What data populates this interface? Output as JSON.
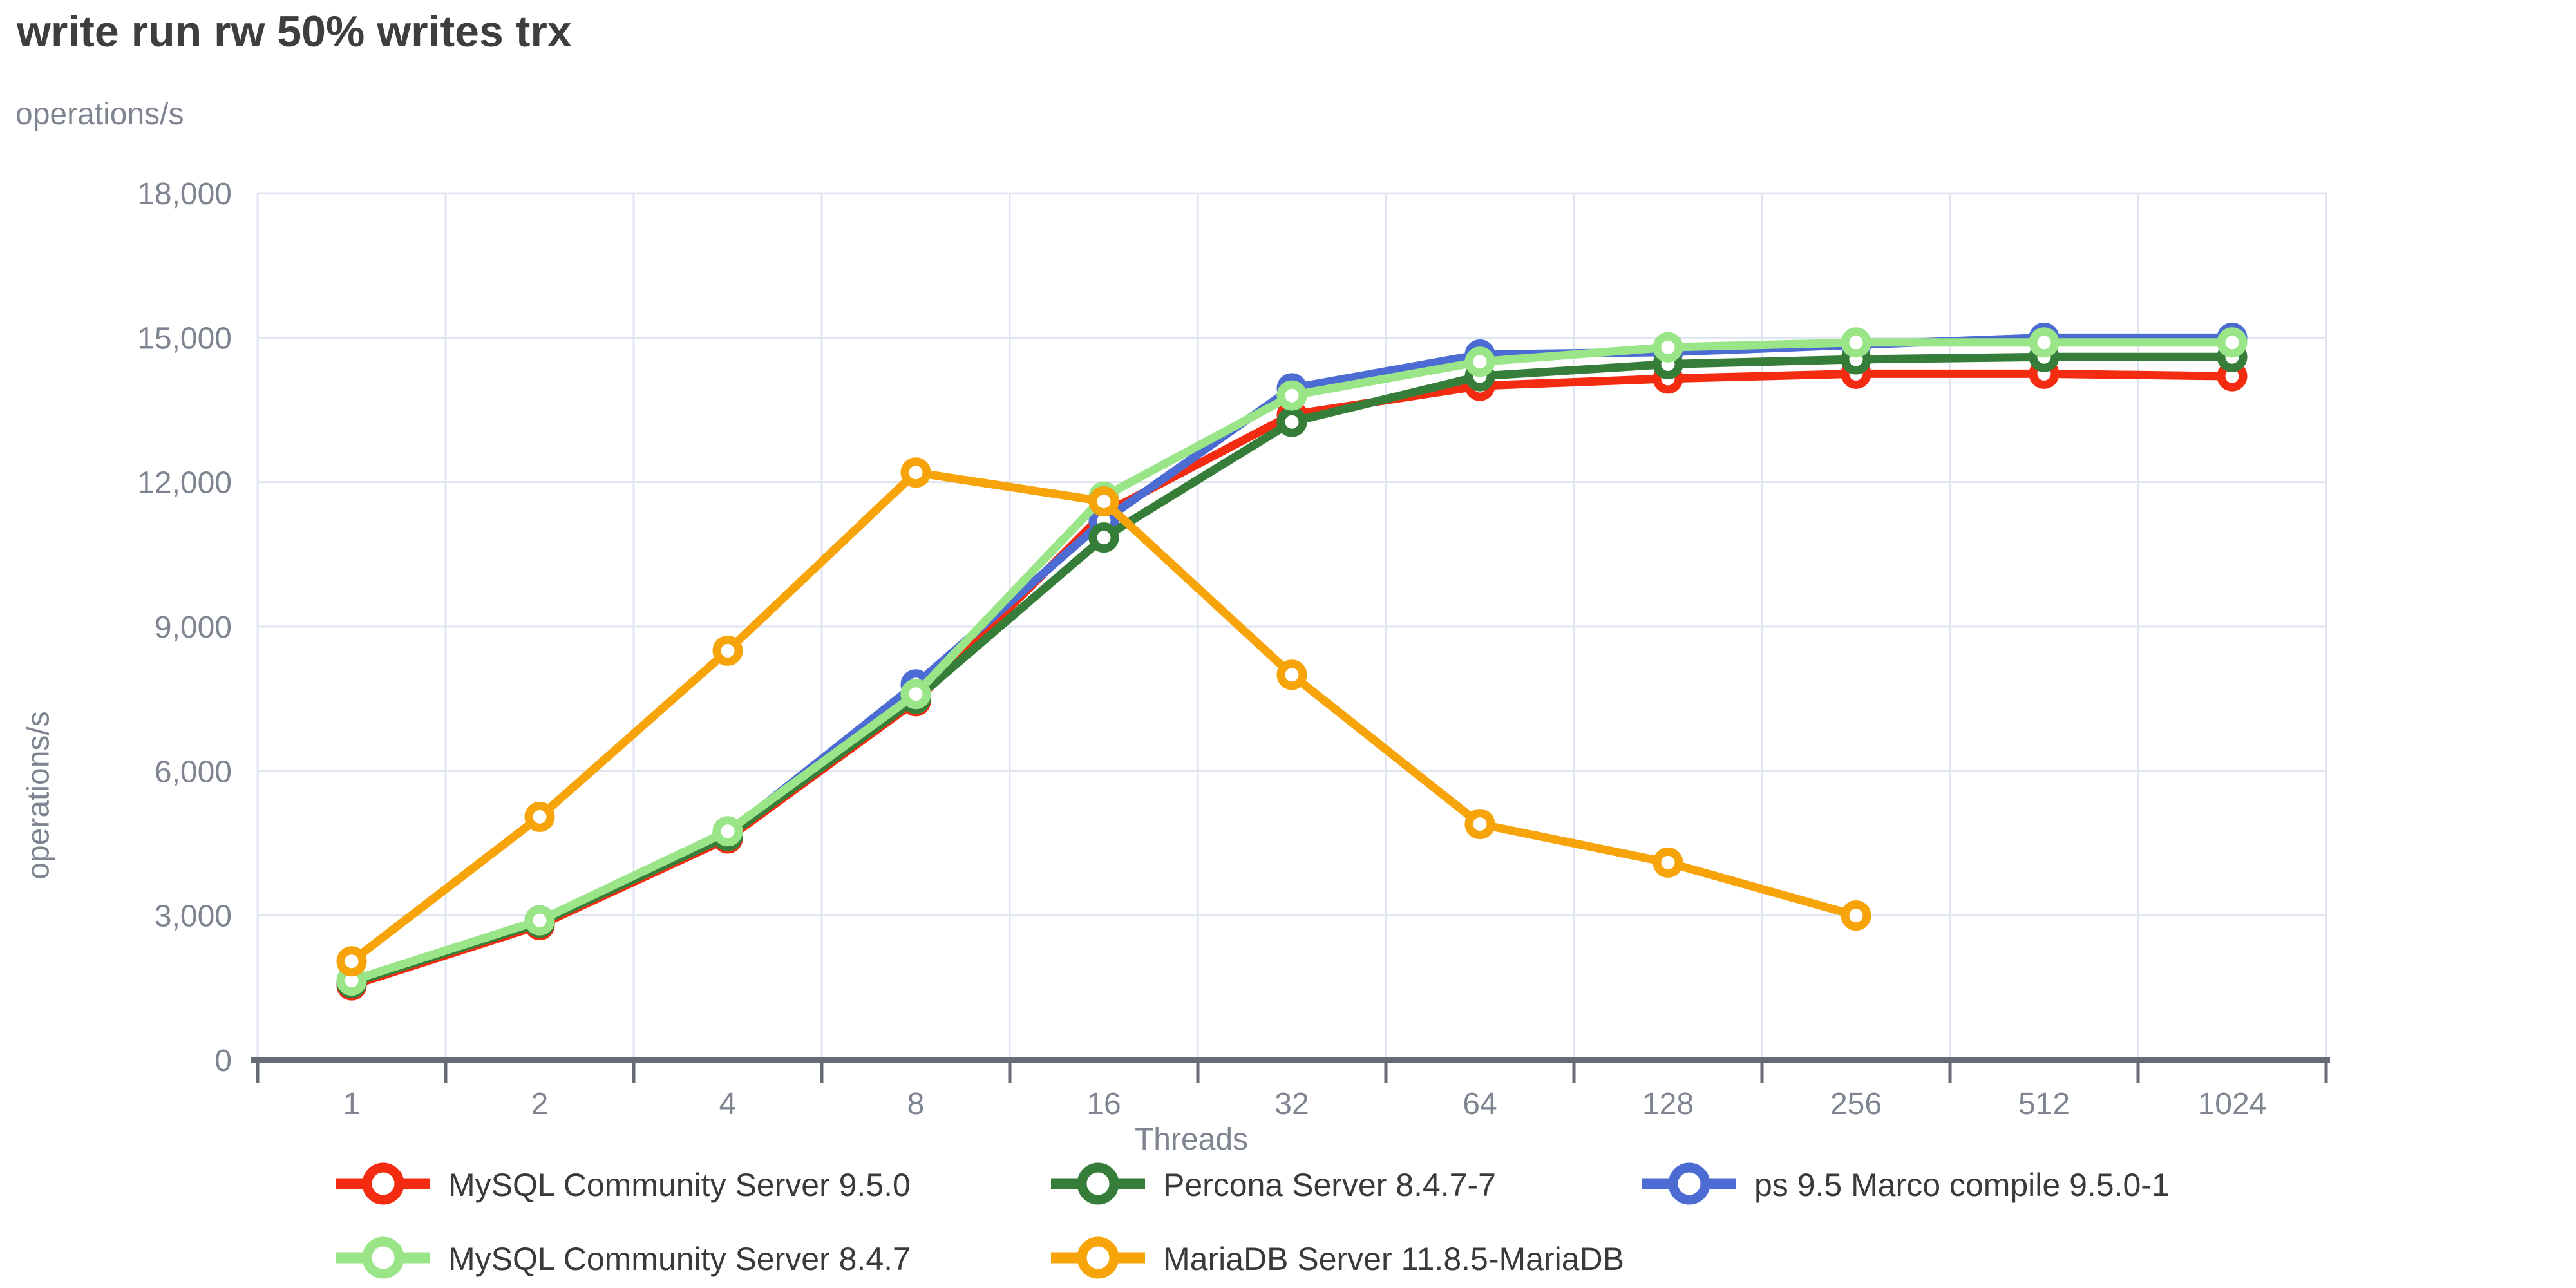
{
  "title": "write run rw 50% writes trx",
  "y_axis_unit_label": "operations/s",
  "y_axis_rotated_label": "operations/s",
  "x_axis_label": "Threads",
  "colors": {
    "background": "#ffffff",
    "grid_line": "#dfe4f0",
    "axis_line": "#666b77",
    "tick_label": "#7e8591",
    "title_text": "#3e3e3e",
    "legend_text": "#3a3a3a"
  },
  "chart_data": {
    "type": "line",
    "title": "write run rw 50% writes trx",
    "xlabel": "Threads",
    "ylabel": "operations/s",
    "categories": [
      "1",
      "2",
      "4",
      "8",
      "16",
      "32",
      "64",
      "128",
      "256",
      "512",
      "1024"
    ],
    "ylim": [
      0,
      18000
    ],
    "y_ticks": [
      0,
      3000,
      6000,
      9000,
      12000,
      15000,
      18000
    ],
    "grid": true,
    "legend_position": "bottom",
    "marker": "open-circle",
    "series": [
      {
        "name": "MySQL Community Server 9.5.0",
        "color": "#f32b11",
        "values": [
          1550,
          2800,
          4600,
          7450,
          11350,
          13400,
          14000,
          14150,
          14250,
          14250,
          14200
        ]
      },
      {
        "name": "Percona Server 8.4.7-7",
        "color": "#377d3a",
        "values": [
          1600,
          2850,
          4650,
          7500,
          10850,
          13250,
          14200,
          14450,
          14550,
          14600,
          14600
        ]
      },
      {
        "name": "ps 9.5 Marco compile 9.5.0-1",
        "color": "#4c6cd3",
        "values": [
          1600,
          2900,
          4700,
          7800,
          11200,
          13950,
          14650,
          14700,
          14850,
          15000,
          15000
        ]
      },
      {
        "name": "MySQL Community Server 8.4.7",
        "color": "#99e588",
        "values": [
          1650,
          2900,
          4750,
          7600,
          11700,
          13800,
          14500,
          14800,
          14900,
          14900,
          14900
        ]
      },
      {
        "name": "MariaDB Server 11.8.5-MariaDB",
        "color": "#f6a40a",
        "values": [
          2050,
          5050,
          8500,
          12200,
          11600,
          8000,
          4900,
          4100,
          3000,
          null,
          null
        ]
      }
    ]
  }
}
